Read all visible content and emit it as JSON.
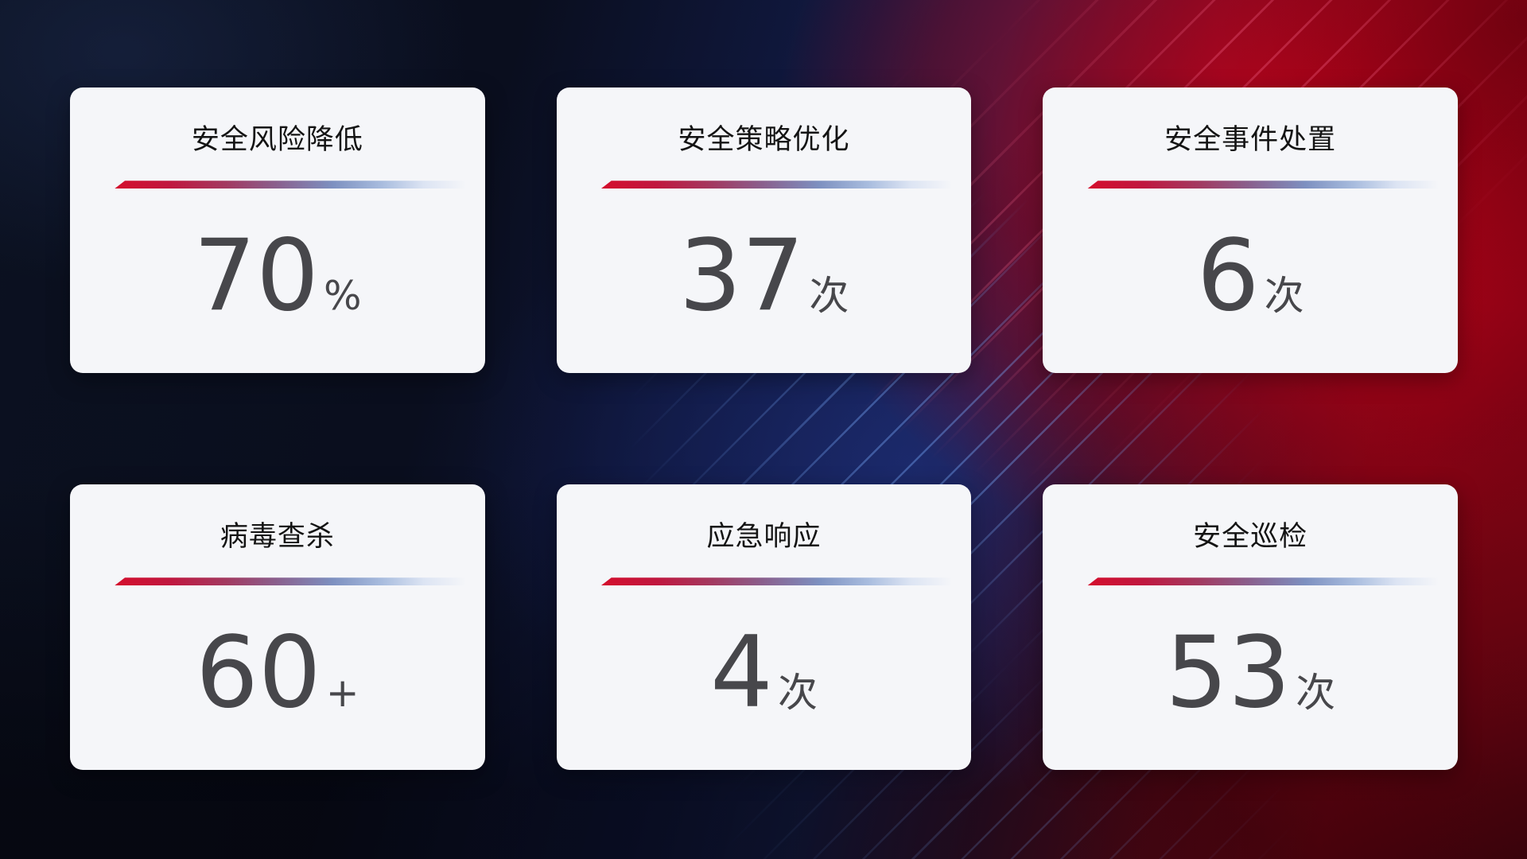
{
  "dashboard": {
    "cards": [
      {
        "title": "安全风险降低",
        "value": "70",
        "unit": "%"
      },
      {
        "title": "安全策略优化",
        "value": "37",
        "unit": "次"
      },
      {
        "title": "安全事件处置",
        "value": "6",
        "unit": "次"
      },
      {
        "title": "病毒查杀",
        "value": "60",
        "unit": "+"
      },
      {
        "title": "应急响应",
        "value": "4",
        "unit": "次"
      },
      {
        "title": "安全巡检",
        "value": "53",
        "unit": "次"
      }
    ],
    "colors": {
      "card_background": "#f5f6f9",
      "title_text": "#141414",
      "value_text": "#47474b",
      "divider_red": "#d40e2d",
      "divider_blue": "#7d90c0",
      "background_navy": "#0a0e1e",
      "background_blue": "#1b2a6b",
      "background_red": "#a50315"
    }
  }
}
